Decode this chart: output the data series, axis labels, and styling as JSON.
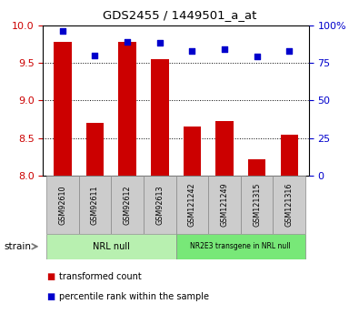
{
  "title": "GDS2455 / 1449501_a_at",
  "samples": [
    "GSM92610",
    "GSM92611",
    "GSM92612",
    "GSM92613",
    "GSM121242",
    "GSM121249",
    "GSM121315",
    "GSM121316"
  ],
  "transformed_count": [
    9.78,
    8.7,
    9.78,
    9.55,
    8.65,
    8.73,
    8.22,
    8.55
  ],
  "percentile_rank": [
    96,
    80,
    89,
    88,
    83,
    84,
    79,
    83
  ],
  "ylim_left": [
    8.0,
    10.0
  ],
  "ylim_right": [
    0,
    100
  ],
  "yticks_left": [
    8.0,
    8.5,
    9.0,
    9.5,
    10.0
  ],
  "yticks_right": [
    0,
    25,
    50,
    75,
    100
  ],
  "groups": [
    {
      "label": "NRL null",
      "start": 0,
      "end": 4,
      "color": "#b8f0b0"
    },
    {
      "label": "NR2E3 transgene in NRL null",
      "start": 4,
      "end": 8,
      "color": "#78e878"
    }
  ],
  "bar_color": "#cc0000",
  "dot_color": "#0000cc",
  "bar_width": 0.55,
  "strain_label": "strain",
  "legend_items": [
    "transformed count",
    "percentile rank within the sample"
  ],
  "tick_label_bg": "#cccccc",
  "fig_width": 3.95,
  "fig_height": 3.45
}
